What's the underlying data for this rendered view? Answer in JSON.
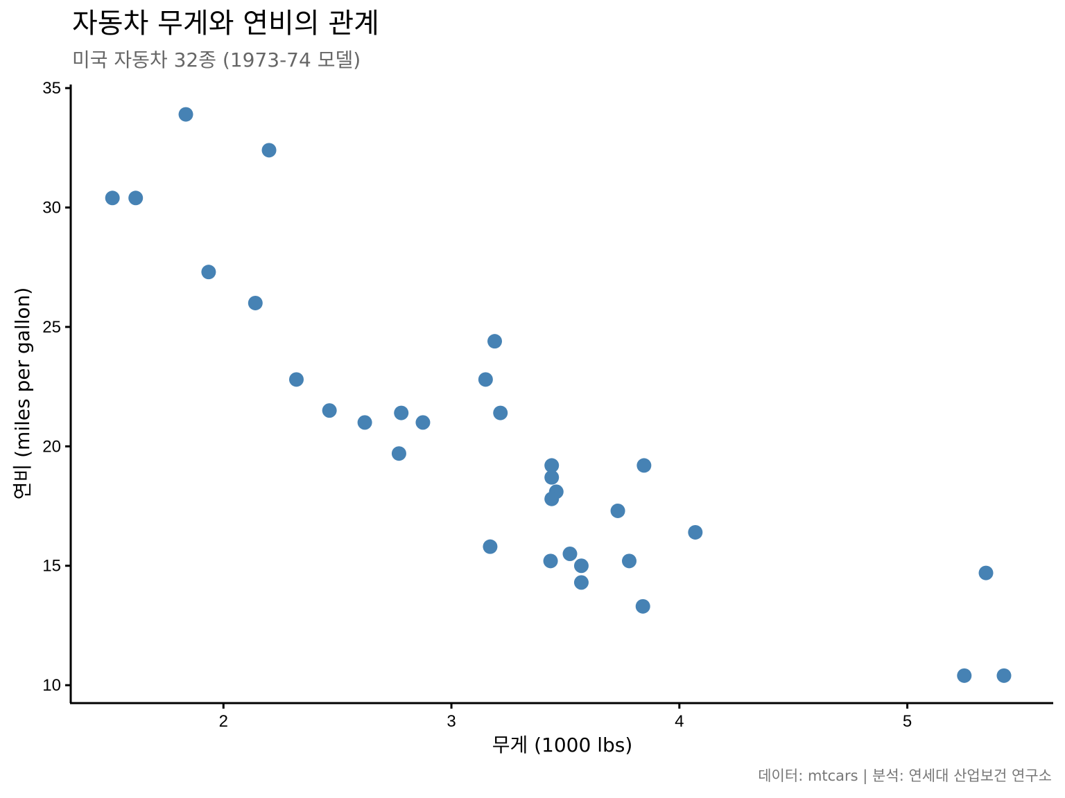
{
  "chart_data": {
    "type": "scatter",
    "title": "자동차 무게와 연비의 관계",
    "subtitle": "미국 자동차 32종 (1973-74 모델)",
    "xlabel": "무게 (1000 lbs)",
    "ylabel": "연비 (miles per gallon)",
    "caption": "데이터: mtcars | 분석: 연세대 산업보건 연구소",
    "xlim": [
      1.33,
      5.64
    ],
    "ylim": [
      9.25,
      35.15
    ],
    "xticks": [
      2,
      3,
      4,
      5
    ],
    "yticks": [
      10,
      15,
      20,
      25,
      30,
      35
    ],
    "grid": false,
    "point_color": "#4682B4",
    "points": [
      {
        "x": 2.62,
        "y": 21.0
      },
      {
        "x": 2.875,
        "y": 21.0
      },
      {
        "x": 2.32,
        "y": 22.8
      },
      {
        "x": 3.215,
        "y": 21.4
      },
      {
        "x": 3.44,
        "y": 18.7
      },
      {
        "x": 3.46,
        "y": 18.1
      },
      {
        "x": 3.57,
        "y": 14.3
      },
      {
        "x": 3.19,
        "y": 24.4
      },
      {
        "x": 3.15,
        "y": 22.8
      },
      {
        "x": 3.44,
        "y": 19.2
      },
      {
        "x": 3.44,
        "y": 17.8
      },
      {
        "x": 4.07,
        "y": 16.4
      },
      {
        "x": 3.73,
        "y": 17.3
      },
      {
        "x": 3.78,
        "y": 15.2
      },
      {
        "x": 5.25,
        "y": 10.4
      },
      {
        "x": 5.424,
        "y": 10.4
      },
      {
        "x": 5.345,
        "y": 14.7
      },
      {
        "x": 2.2,
        "y": 32.4
      },
      {
        "x": 1.615,
        "y": 30.4
      },
      {
        "x": 1.835,
        "y": 33.9
      },
      {
        "x": 2.465,
        "y": 21.5
      },
      {
        "x": 3.52,
        "y": 15.5
      },
      {
        "x": 3.435,
        "y": 15.2
      },
      {
        "x": 3.84,
        "y": 13.3
      },
      {
        "x": 3.845,
        "y": 19.2
      },
      {
        "x": 1.935,
        "y": 27.3
      },
      {
        "x": 2.14,
        "y": 26.0
      },
      {
        "x": 1.513,
        "y": 30.4
      },
      {
        "x": 3.17,
        "y": 15.8
      },
      {
        "x": 2.77,
        "y": 19.7
      },
      {
        "x": 3.57,
        "y": 15.0
      },
      {
        "x": 2.78,
        "y": 21.4
      }
    ]
  }
}
